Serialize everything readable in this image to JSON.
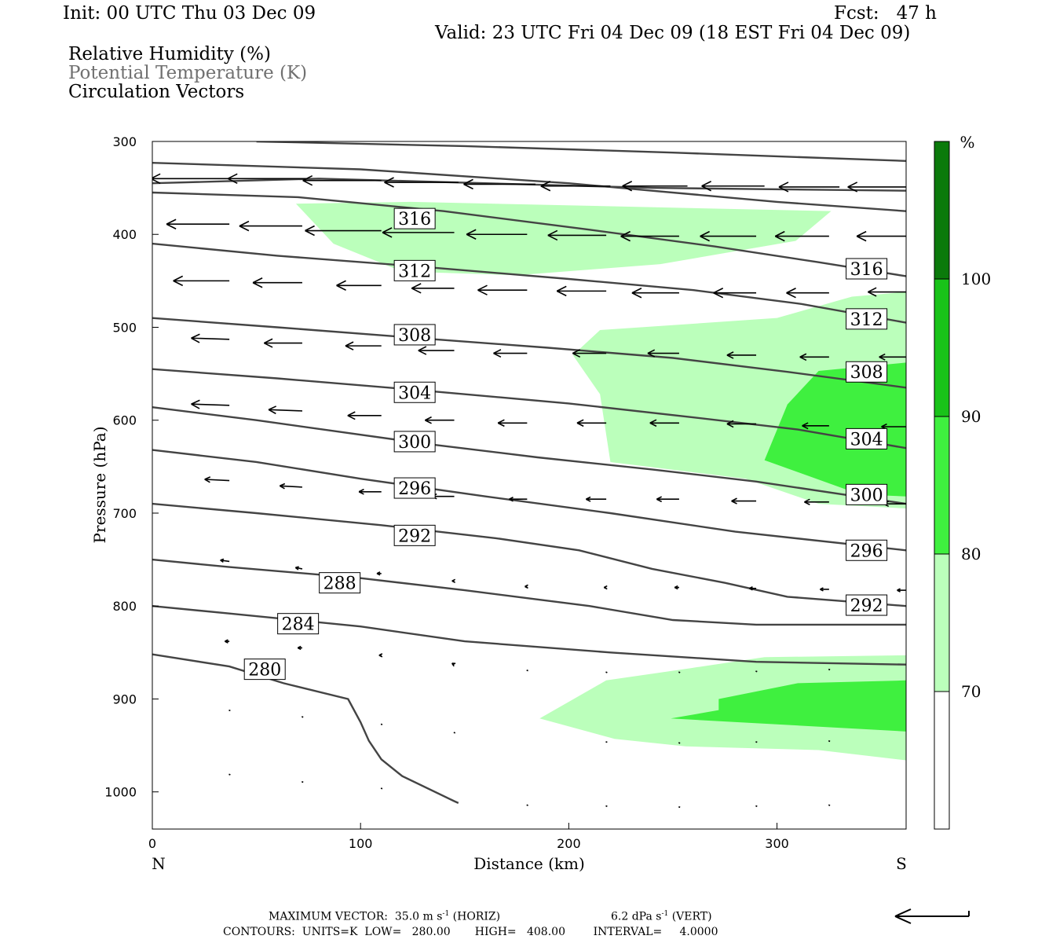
{
  "header": {
    "init": "Init: 00 UTC Thu 03 Dec 09",
    "fcst": "Fcst:   47 h",
    "valid": "Valid: 23 UTC Fri 04 Dec 09 (18 EST Fri 04 Dec 09)",
    "fields": [
      "Relative Humidity (%)",
      "Potential Temperature (K)",
      "Circulation Vectors"
    ]
  },
  "colors": {
    "rh_70_80": "#bbffbb",
    "rh_80_90": "#3ff03f",
    "rh_90_100": "#19c319",
    "rh_100": "#0b7a0b",
    "contour": "#444444",
    "field2_text": "#707070"
  },
  "chart_data": {
    "type": "cross-section",
    "xlabel": "Distance (km)",
    "ylabel": "Pressure (hPa)",
    "xlim": [
      0,
      362
    ],
    "ylim": [
      1040,
      300
    ],
    "x_ticks": [
      0,
      100,
      200,
      300
    ],
    "y_ticks": [
      300,
      400,
      500,
      600,
      700,
      800,
      900,
      1000
    ],
    "x_end_labels": {
      "left": "N",
      "right": "S"
    },
    "colorbar": {
      "unit": "%",
      "ticks": [
        70,
        80,
        90,
        100
      ]
    },
    "rh_shading": [
      {
        "level": "70-80",
        "polygon": [
          [
            69,
            367
          ],
          [
            124,
            365
          ],
          [
            326,
            375
          ],
          [
            309,
            407
          ],
          [
            244,
            432
          ],
          [
            175,
            444
          ],
          [
            120,
            440
          ],
          [
            87,
            410
          ]
        ]
      },
      {
        "level": "70-80",
        "polygon": [
          [
            362,
            462
          ],
          [
            336,
            467
          ],
          [
            300,
            490
          ],
          [
            215,
            503
          ],
          [
            202,
            530
          ],
          [
            215,
            572
          ],
          [
            220,
            645
          ],
          [
            285,
            663
          ],
          [
            320,
            690
          ],
          [
            362,
            695
          ]
        ]
      },
      {
        "level": "70-80",
        "polygon": [
          [
            186,
            921
          ],
          [
            218,
            880
          ],
          [
            258,
            867
          ],
          [
            294,
            855
          ],
          [
            362,
            853
          ],
          [
            362,
            966
          ],
          [
            320,
            955
          ],
          [
            256,
            951
          ],
          [
            222,
            943
          ]
        ]
      },
      {
        "level": "80-90",
        "polygon": [
          [
            362,
            538
          ],
          [
            320,
            547
          ],
          [
            305,
            583
          ],
          [
            294,
            643
          ],
          [
            340,
            680
          ],
          [
            362,
            682
          ]
        ]
      },
      {
        "level": "80-90",
        "polygon": [
          [
            249,
            921
          ],
          [
            272,
            912
          ],
          [
            272,
            900
          ],
          [
            310,
            883
          ],
          [
            362,
            880
          ],
          [
            362,
            935
          ]
        ]
      }
    ],
    "theta_contours": [
      {
        "value": 280,
        "points": [
          [
            0,
            852
          ],
          [
            37,
            865
          ],
          [
            63,
            883
          ],
          [
            94,
            900
          ],
          [
            100,
            925
          ],
          [
            104,
            945
          ],
          [
            110,
            965
          ],
          [
            120,
            983
          ],
          [
            145,
            1010
          ],
          [
            147,
            1012
          ]
        ]
      },
      {
        "value": 284,
        "points": [
          [
            0,
            800
          ],
          [
            37,
            808
          ],
          [
            100,
            822
          ],
          [
            150,
            838
          ],
          [
            220,
            850
          ],
          [
            290,
            860
          ],
          [
            362,
            863
          ]
        ]
      },
      {
        "value": 288,
        "points": [
          [
            0,
            750
          ],
          [
            37,
            758
          ],
          [
            100,
            770
          ],
          [
            150,
            783
          ],
          [
            210,
            800
          ],
          [
            250,
            815
          ],
          [
            290,
            820
          ],
          [
            362,
            820
          ]
        ]
      },
      {
        "value": 292,
        "points": [
          [
            0,
            690
          ],
          [
            50,
            700
          ],
          [
            110,
            713
          ],
          [
            165,
            727
          ],
          [
            205,
            740
          ],
          [
            240,
            760
          ],
          [
            275,
            775
          ],
          [
            305,
            790
          ],
          [
            362,
            800
          ]
        ]
      },
      {
        "value": 296,
        "points": [
          [
            0,
            632
          ],
          [
            50,
            645
          ],
          [
            100,
            663
          ],
          [
            160,
            682
          ],
          [
            220,
            700
          ],
          [
            280,
            720
          ],
          [
            362,
            740
          ]
        ]
      },
      {
        "value": 300,
        "points": [
          [
            0,
            586
          ],
          [
            50,
            600
          ],
          [
            130,
            625
          ],
          [
            185,
            640
          ],
          [
            240,
            653
          ],
          [
            290,
            666
          ],
          [
            362,
            690
          ]
        ]
      },
      {
        "value": 304,
        "points": [
          [
            0,
            545
          ],
          [
            60,
            555
          ],
          [
            130,
            568
          ],
          [
            200,
            582
          ],
          [
            260,
            597
          ],
          [
            310,
            610
          ],
          [
            362,
            630
          ]
        ]
      },
      {
        "value": 308,
        "points": [
          [
            0,
            490
          ],
          [
            60,
            500
          ],
          [
            130,
            512
          ],
          [
            190,
            522
          ],
          [
            250,
            533
          ],
          [
            305,
            548
          ],
          [
            362,
            565
          ]
        ]
      },
      {
        "value": 312,
        "points": [
          [
            0,
            410
          ],
          [
            60,
            423
          ],
          [
            130,
            435
          ],
          [
            200,
            448
          ],
          [
            260,
            460
          ],
          [
            312,
            475
          ],
          [
            362,
            495
          ]
        ]
      },
      {
        "value": 316,
        "points": [
          [
            0,
            355
          ],
          [
            70,
            360
          ],
          [
            140,
            375
          ],
          [
            210,
            395
          ],
          [
            270,
            413
          ],
          [
            320,
            430
          ],
          [
            362,
            445
          ]
        ]
      },
      {
        "value": 320,
        "points": [
          [
            0,
            323
          ],
          [
            100,
            330
          ],
          [
            200,
            345
          ],
          [
            300,
            365
          ],
          [
            362,
            375
          ]
        ]
      },
      {
        "value": 324,
        "points": [
          [
            0,
            345
          ],
          [
            80,
            340
          ],
          [
            160,
            345
          ],
          [
            240,
            350
          ],
          [
            362,
            353
          ]
        ]
      },
      {
        "value": 328,
        "points": [
          [
            50,
            300
          ],
          [
            150,
            305
          ],
          [
            250,
            312
          ],
          [
            362,
            321
          ]
        ]
      }
    ],
    "theta_labels": [
      {
        "text": "316",
        "x": 126,
        "p": 383
      },
      {
        "text": "312",
        "x": 126,
        "p": 439
      },
      {
        "text": "308",
        "x": 126,
        "p": 508
      },
      {
        "text": "304",
        "x": 126,
        "p": 570
      },
      {
        "text": "300",
        "x": 126,
        "p": 623
      },
      {
        "text": "296",
        "x": 126,
        "p": 673
      },
      {
        "text": "292",
        "x": 126,
        "p": 724
      },
      {
        "text": "288",
        "x": 90,
        "p": 775
      },
      {
        "text": "284",
        "x": 70,
        "p": 819
      },
      {
        "text": "280",
        "x": 54,
        "p": 868
      },
      {
        "text": "316",
        "x": 343,
        "p": 437
      },
      {
        "text": "312",
        "x": 343,
        "p": 491
      },
      {
        "text": "308",
        "x": 343,
        "p": 548
      },
      {
        "text": "304",
        "x": 343,
        "p": 620
      },
      {
        "text": "300",
        "x": 343,
        "p": 680
      },
      {
        "text": "296",
        "x": 343,
        "p": 740
      },
      {
        "text": "292",
        "x": 343,
        "p": 799
      }
    ],
    "vectors": [
      {
        "x": 37,
        "p": 340,
        "u": -35,
        "w": 0
      },
      {
        "x": 74,
        "p": 340,
        "u": -35,
        "w": 0
      },
      {
        "x": 110,
        "p": 342,
        "u": -35,
        "w": 0
      },
      {
        "x": 147,
        "p": 344,
        "u": -33,
        "w": 0
      },
      {
        "x": 184,
        "p": 346,
        "u": -32,
        "w": 0
      },
      {
        "x": 220,
        "p": 348,
        "u": -31,
        "w": 0
      },
      {
        "x": 257,
        "p": 348,
        "u": -29,
        "w": 0
      },
      {
        "x": 294,
        "p": 348,
        "u": -28,
        "w": 0
      },
      {
        "x": 330,
        "p": 349,
        "u": -27,
        "w": 0
      },
      {
        "x": 362,
        "p": 349,
        "u": -26,
        "w": 0
      },
      {
        "x": 37,
        "p": 389,
        "u": -28,
        "w": 0
      },
      {
        "x": 72,
        "p": 391,
        "u": -28,
        "w": 0
      },
      {
        "x": 110,
        "p": 396,
        "u": -34,
        "w": 0
      },
      {
        "x": 145,
        "p": 398,
        "u": -32,
        "w": 0
      },
      {
        "x": 180,
        "p": 400,
        "u": -27,
        "w": 0
      },
      {
        "x": 218,
        "p": 401,
        "u": -26,
        "w": 0
      },
      {
        "x": 253,
        "p": 402,
        "u": -26,
        "w": 0
      },
      {
        "x": 290,
        "p": 402,
        "u": -25,
        "w": 0
      },
      {
        "x": 325,
        "p": 402,
        "u": -24,
        "w": 0
      },
      {
        "x": 362,
        "p": 402,
        "u": -22,
        "w": 0
      },
      {
        "x": 37,
        "p": 450,
        "u": -25,
        "w": 0
      },
      {
        "x": 72,
        "p": 452,
        "u": -22,
        "w": 0
      },
      {
        "x": 110,
        "p": 455,
        "u": -20,
        "w": 0
      },
      {
        "x": 145,
        "p": 458,
        "u": -19,
        "w": 0
      },
      {
        "x": 180,
        "p": 460,
        "u": -22,
        "w": 0
      },
      {
        "x": 218,
        "p": 461,
        "u": -22,
        "w": 0
      },
      {
        "x": 253,
        "p": 463,
        "u": -21,
        "w": 0
      },
      {
        "x": 290,
        "p": 463,
        "u": -19,
        "w": 0
      },
      {
        "x": 325,
        "p": 463,
        "u": -19,
        "w": 0
      },
      {
        "x": 362,
        "p": 462,
        "u": -17,
        "w": 0
      },
      {
        "x": 37,
        "p": 513,
        "u": -17,
        "w": 1
      },
      {
        "x": 72,
        "p": 517,
        "u": -17,
        "w": 0
      },
      {
        "x": 110,
        "p": 520,
        "u": -16,
        "w": 0
      },
      {
        "x": 145,
        "p": 525,
        "u": -16,
        "w": 0
      },
      {
        "x": 180,
        "p": 528,
        "u": -15,
        "w": 0
      },
      {
        "x": 218,
        "p": 528,
        "u": -15,
        "w": 0
      },
      {
        "x": 253,
        "p": 528,
        "u": -14,
        "w": 0
      },
      {
        "x": 290,
        "p": 530,
        "u": -13,
        "w": 0
      },
      {
        "x": 325,
        "p": 532,
        "u": -13,
        "w": 0
      },
      {
        "x": 362,
        "p": 532,
        "u": -12,
        "w": 0
      },
      {
        "x": 37,
        "p": 584,
        "u": -17,
        "w": 1
      },
      {
        "x": 72,
        "p": 590,
        "u": -15,
        "w": 1
      },
      {
        "x": 110,
        "p": 595,
        "u": -15,
        "w": 0
      },
      {
        "x": 145,
        "p": 600,
        "u": -13,
        "w": 0
      },
      {
        "x": 180,
        "p": 603,
        "u": -13,
        "w": 0
      },
      {
        "x": 218,
        "p": 603,
        "u": -13,
        "w": 0
      },
      {
        "x": 253,
        "p": 603,
        "u": -13,
        "w": 0
      },
      {
        "x": 290,
        "p": 604,
        "u": -13,
        "w": 0
      },
      {
        "x": 325,
        "p": 606,
        "u": -12,
        "w": 0
      },
      {
        "x": 362,
        "p": 607,
        "u": -11,
        "w": 0
      },
      {
        "x": 37,
        "p": 665,
        "u": -11,
        "w": 1
      },
      {
        "x": 72,
        "p": 672,
        "u": -10,
        "w": 1
      },
      {
        "x": 110,
        "p": 677,
        "u": -10,
        "w": 0
      },
      {
        "x": 145,
        "p": 682,
        "u": -10,
        "w": 0
      },
      {
        "x": 180,
        "p": 685,
        "u": -8,
        "w": 0
      },
      {
        "x": 218,
        "p": 685,
        "u": -9,
        "w": 0
      },
      {
        "x": 253,
        "p": 685,
        "u": -10,
        "w": 0
      },
      {
        "x": 290,
        "p": 687,
        "u": -11,
        "w": 0
      },
      {
        "x": 325,
        "p": 688,
        "u": -11,
        "w": 0
      },
      {
        "x": 362,
        "p": 690,
        "u": -10,
        "w": 0
      },
      {
        "x": 37,
        "p": 752,
        "u": -4,
        "w": 1
      },
      {
        "x": 72,
        "p": 760,
        "u": -3,
        "w": 1
      },
      {
        "x": 110,
        "p": 765,
        "u": -2,
        "w": 0
      },
      {
        "x": 145,
        "p": 773,
        "u": -1,
        "w": 0
      },
      {
        "x": 180,
        "p": 779,
        "u": -1,
        "w": 0
      },
      {
        "x": 218,
        "p": 780,
        "u": -1,
        "w": 0
      },
      {
        "x": 253,
        "p": 780,
        "u": -2,
        "w": 0
      },
      {
        "x": 290,
        "p": 781,
        "u": -3,
        "w": 0
      },
      {
        "x": 325,
        "p": 782,
        "u": -4,
        "w": 0
      },
      {
        "x": 362,
        "p": 783,
        "u": -4,
        "w": 0
      },
      {
        "x": 37,
        "p": 838,
        "u": -2,
        "w": 0
      },
      {
        "x": 72,
        "p": 845,
        "u": -2,
        "w": 0
      },
      {
        "x": 110,
        "p": 853,
        "u": -1,
        "w": 0
      },
      {
        "x": 145,
        "p": 863,
        "u": -1,
        "w": 1
      },
      {
        "x": 180,
        "p": 870,
        "u": 0,
        "w": 1
      },
      {
        "x": 218,
        "p": 872,
        "u": 0,
        "w": 1
      },
      {
        "x": 253,
        "p": 872,
        "u": 0,
        "w": 1
      },
      {
        "x": 290,
        "p": 871,
        "u": 0,
        "w": 1
      },
      {
        "x": 325,
        "p": 869,
        "u": 0,
        "w": 1
      },
      {
        "x": 37,
        "p": 913,
        "u": 0,
        "w": 1
      },
      {
        "x": 72,
        "p": 920,
        "u": 0,
        "w": 1
      },
      {
        "x": 110,
        "p": 928,
        "u": 0,
        "w": 1
      },
      {
        "x": 145,
        "p": 937,
        "u": 0,
        "w": 1
      },
      {
        "x": 218,
        "p": 947,
        "u": 0,
        "w": 1
      },
      {
        "x": 253,
        "p": 948,
        "u": 0,
        "w": 1
      },
      {
        "x": 290,
        "p": 947,
        "u": 0,
        "w": 1
      },
      {
        "x": 325,
        "p": 946,
        "u": 0,
        "w": 1
      },
      {
        "x": 37,
        "p": 982,
        "u": 0,
        "w": 1
      },
      {
        "x": 72,
        "p": 990,
        "u": 0,
        "w": 1
      },
      {
        "x": 110,
        "p": 997,
        "u": 0,
        "w": 1
      },
      {
        "x": 180,
        "p": 1015,
        "u": 0,
        "w": 1
      },
      {
        "x": 218,
        "p": 1016,
        "u": 0,
        "w": 1
      },
      {
        "x": 253,
        "p": 1017,
        "u": 0,
        "w": 1
      },
      {
        "x": 290,
        "p": 1016,
        "u": 0,
        "w": 1
      },
      {
        "x": 325,
        "p": 1015,
        "u": 0,
        "w": 1
      }
    ]
  },
  "footer": {
    "line1_max_vector": "MAXIMUM VECTOR:  35.0 m s",
    "line1_horiz": "(HORIZ)",
    "line1_vert_value": "6.2 dPa s",
    "line1_vert": "(VERT)",
    "sup": "-1",
    "line2": "CONTOURS:  UNITS=K  LOW=   280.00       HIGH=   408.00        INTERVAL=     4.0000"
  }
}
